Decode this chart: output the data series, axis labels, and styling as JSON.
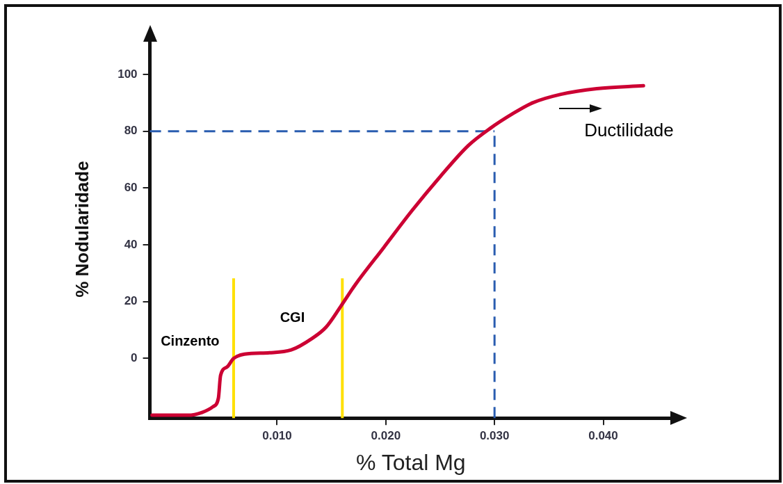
{
  "chart_data": {
    "type": "line",
    "xlabel": "% Total Mg",
    "ylabel": "% Nodularidade",
    "x": [
      -0.0015,
      0.0018,
      0.0031,
      0.0041,
      0.0046,
      0.0048,
      0.0054,
      0.006,
      0.007,
      0.0093,
      0.0113,
      0.0132,
      0.0145,
      0.0158,
      0.0172,
      0.0198,
      0.0224,
      0.025,
      0.0276,
      0.0296,
      0.0316,
      0.0335,
      0.0361,
      0.0394,
      0.0437
    ],
    "series": [
      {
        "color": "#cc0033",
        "values": [
          -20,
          -20,
          -19,
          -17,
          -14,
          -6,
          -3,
          0,
          1.5,
          2,
          3,
          7,
          11,
          18,
          26,
          39,
          52,
          64,
          75,
          81,
          86,
          90,
          93,
          95,
          96
        ]
      }
    ],
    "xlim": [
      -0.0017,
      0.0463
    ],
    "ylim": [
      -21,
      112
    ],
    "xticks": [
      {
        "value": 0.01,
        "label": "0.010"
      },
      {
        "value": 0.02,
        "label": "0.020"
      },
      {
        "value": 0.03,
        "label": "0.030"
      },
      {
        "value": 0.04,
        "label": "0.040"
      }
    ],
    "yticks": [
      0,
      20,
      40,
      60,
      80,
      100
    ],
    "grid": false,
    "legend": false,
    "marker": "none",
    "line_style": "solid",
    "ref_lines": [
      {
        "axis": "y",
        "value": 80,
        "color": "#2a5db0",
        "line_style": "dashed"
      },
      {
        "axis": "x",
        "value": 0.03,
        "color": "#2a5db0",
        "line_style": "dashed"
      },
      {
        "axis": "x",
        "value": 0.006,
        "color": "#ffe000",
        "line_style": "solid"
      },
      {
        "axis": "x",
        "value": 0.016,
        "color": "#ffe000",
        "line_style": "solid"
      }
    ],
    "annotations": [
      "Cinzento",
      "CGI",
      "Ductilidade"
    ]
  }
}
